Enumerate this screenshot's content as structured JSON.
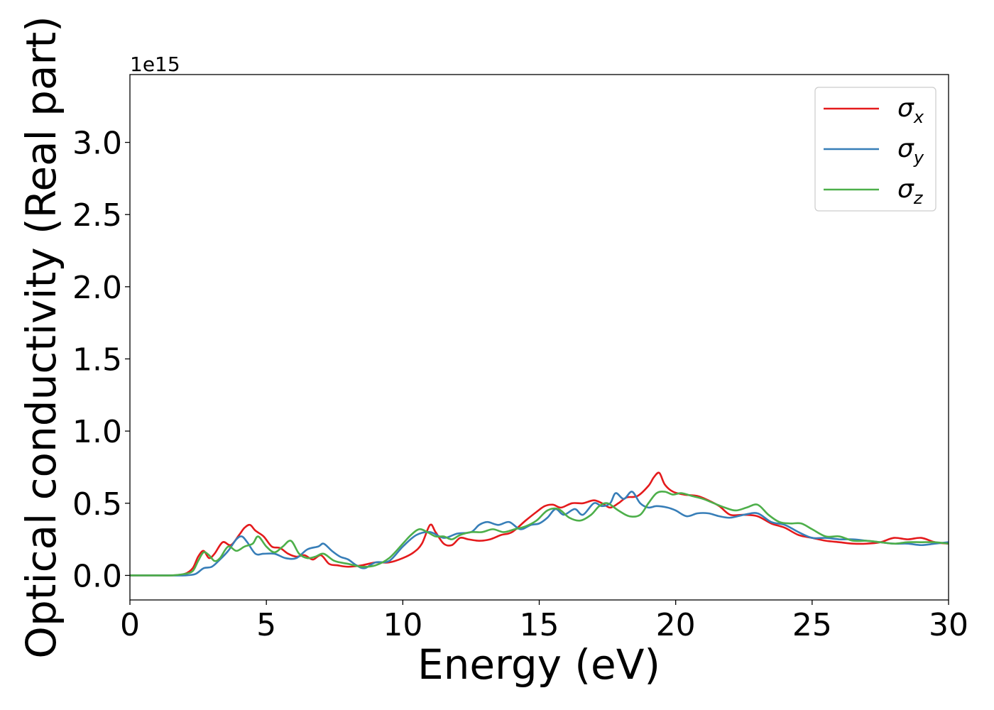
{
  "chart_data": {
    "type": "line",
    "title": "",
    "xlabel": "Energy (eV)",
    "ylabel": "Optical conductivity (Real part)",
    "y_offset_text": "1e15",
    "xlim": [
      0,
      30
    ],
    "ylim": [
      -0.17,
      3.47
    ],
    "x_ticks": [
      0,
      5,
      10,
      15,
      20,
      25,
      30
    ],
    "x_tick_labels": [
      "0",
      "5",
      "10",
      "15",
      "20",
      "25",
      "30"
    ],
    "y_ticks": [
      0.0,
      0.5,
      1.0,
      1.5,
      2.0,
      2.5,
      3.0
    ],
    "y_tick_labels": [
      "0.0",
      "0.5",
      "1.0",
      "1.5",
      "2.0",
      "2.5",
      "3.0"
    ],
    "grid": false,
    "legend_position": "top-right",
    "series": [
      {
        "name": "σx",
        "symbol": "σ",
        "subscript": "x",
        "color": "#e41a1c",
        "x": [
          0,
          1,
          1.5,
          2.0,
          2.3,
          2.5,
          2.7,
          2.9,
          3.1,
          3.4,
          3.7,
          4.0,
          4.2,
          4.4,
          4.6,
          4.9,
          5.2,
          5.5,
          5.8,
          6.1,
          6.4,
          6.7,
          7.0,
          7.3,
          7.6,
          8.0,
          8.5,
          9.0,
          9.5,
          10.0,
          10.4,
          10.7,
          11.0,
          11.2,
          11.5,
          11.8,
          12.1,
          12.4,
          12.8,
          13.2,
          13.6,
          14.0,
          14.5,
          14.9,
          15.2,
          15.5,
          15.8,
          16.2,
          16.6,
          17.0,
          17.3,
          17.6,
          17.9,
          18.2,
          18.6,
          19.0,
          19.2,
          19.4,
          19.6,
          19.9,
          20.3,
          20.8,
          21.2,
          21.6,
          22.0,
          22.5,
          23.0,
          23.5,
          24.0,
          24.5,
          25.0,
          25.5,
          26.0,
          26.5,
          27.0,
          27.5,
          28.0,
          28.5,
          29.0,
          29.5,
          30.0
        ],
        "y": [
          0.0,
          0.0,
          0.0,
          0.01,
          0.05,
          0.13,
          0.17,
          0.12,
          0.15,
          0.23,
          0.21,
          0.28,
          0.33,
          0.35,
          0.31,
          0.27,
          0.2,
          0.19,
          0.15,
          0.13,
          0.14,
          0.11,
          0.14,
          0.08,
          0.07,
          0.06,
          0.07,
          0.09,
          0.09,
          0.12,
          0.16,
          0.22,
          0.35,
          0.3,
          0.22,
          0.21,
          0.26,
          0.25,
          0.24,
          0.25,
          0.28,
          0.3,
          0.38,
          0.44,
          0.48,
          0.49,
          0.47,
          0.5,
          0.5,
          0.52,
          0.5,
          0.47,
          0.5,
          0.54,
          0.55,
          0.62,
          0.68,
          0.71,
          0.63,
          0.58,
          0.56,
          0.55,
          0.52,
          0.48,
          0.42,
          0.42,
          0.41,
          0.36,
          0.33,
          0.28,
          0.26,
          0.24,
          0.23,
          0.22,
          0.22,
          0.23,
          0.26,
          0.25,
          0.26,
          0.23,
          0.22
        ]
      },
      {
        "name": "σy",
        "symbol": "σ",
        "subscript": "y",
        "color": "#377eb8",
        "x": [
          0,
          1,
          1.5,
          2.0,
          2.4,
          2.7,
          3.0,
          3.3,
          3.6,
          3.9,
          4.1,
          4.3,
          4.6,
          4.9,
          5.3,
          5.7,
          6.1,
          6.5,
          6.9,
          7.1,
          7.4,
          7.7,
          8.0,
          8.3,
          8.6,
          9.0,
          9.5,
          10.0,
          10.5,
          11.0,
          11.5,
          12.0,
          12.5,
          12.8,
          13.1,
          13.5,
          13.9,
          14.3,
          14.7,
          15.0,
          15.3,
          15.6,
          15.9,
          16.3,
          16.6,
          17.0,
          17.3,
          17.6,
          17.8,
          18.1,
          18.4,
          18.7,
          19.0,
          19.3,
          19.7,
          20.0,
          20.4,
          20.8,
          21.2,
          21.6,
          22.0,
          22.5,
          23.0,
          23.5,
          24.0,
          24.5,
          25.0,
          25.5,
          26.0,
          26.5,
          27.0,
          27.5,
          28.0,
          28.5,
          29.0,
          29.5,
          30.0
        ],
        "y": [
          0.0,
          0.0,
          0.0,
          0.0,
          0.01,
          0.05,
          0.06,
          0.11,
          0.17,
          0.25,
          0.27,
          0.23,
          0.15,
          0.15,
          0.15,
          0.12,
          0.12,
          0.18,
          0.2,
          0.22,
          0.17,
          0.13,
          0.11,
          0.07,
          0.05,
          0.09,
          0.1,
          0.2,
          0.28,
          0.3,
          0.26,
          0.29,
          0.3,
          0.35,
          0.37,
          0.35,
          0.37,
          0.32,
          0.35,
          0.36,
          0.4,
          0.46,
          0.42,
          0.46,
          0.42,
          0.5,
          0.48,
          0.5,
          0.57,
          0.53,
          0.58,
          0.5,
          0.47,
          0.48,
          0.47,
          0.45,
          0.41,
          0.43,
          0.43,
          0.41,
          0.4,
          0.42,
          0.43,
          0.37,
          0.35,
          0.3,
          0.26,
          0.26,
          0.25,
          0.25,
          0.24,
          0.23,
          0.22,
          0.22,
          0.21,
          0.22,
          0.23
        ]
      },
      {
        "name": "σz",
        "symbol": "σ",
        "subscript": "z",
        "color": "#4daf4a",
        "x": [
          0,
          1,
          1.5,
          2.0,
          2.3,
          2.5,
          2.7,
          2.9,
          3.1,
          3.3,
          3.6,
          3.9,
          4.2,
          4.5,
          4.7,
          5.0,
          5.3,
          5.6,
          5.9,
          6.2,
          6.5,
          6.8,
          7.1,
          7.5,
          8.0,
          8.5,
          9.0,
          9.5,
          10.0,
          10.3,
          10.6,
          10.9,
          11.2,
          11.5,
          11.8,
          12.1,
          12.5,
          12.9,
          13.3,
          13.7,
          14.1,
          14.5,
          14.9,
          15.3,
          15.7,
          16.1,
          16.5,
          16.9,
          17.2,
          17.5,
          17.9,
          18.3,
          18.7,
          19.0,
          19.3,
          19.6,
          19.9,
          20.2,
          20.6,
          21.0,
          21.4,
          21.8,
          22.2,
          22.6,
          23.0,
          23.4,
          23.8,
          24.2,
          24.6,
          25.0,
          25.5,
          26.0,
          26.5,
          27.0,
          27.5,
          28.0,
          28.5,
          29.0,
          29.5,
          30.0
        ],
        "y": [
          0.0,
          0.0,
          0.0,
          0.01,
          0.03,
          0.1,
          0.16,
          0.14,
          0.1,
          0.12,
          0.2,
          0.17,
          0.2,
          0.22,
          0.27,
          0.2,
          0.16,
          0.2,
          0.24,
          0.15,
          0.12,
          0.13,
          0.15,
          0.1,
          0.08,
          0.06,
          0.07,
          0.12,
          0.22,
          0.28,
          0.32,
          0.3,
          0.27,
          0.27,
          0.25,
          0.28,
          0.3,
          0.3,
          0.32,
          0.3,
          0.32,
          0.34,
          0.38,
          0.45,
          0.46,
          0.4,
          0.38,
          0.42,
          0.48,
          0.5,
          0.45,
          0.41,
          0.42,
          0.5,
          0.57,
          0.58,
          0.56,
          0.57,
          0.55,
          0.53,
          0.5,
          0.47,
          0.45,
          0.47,
          0.49,
          0.42,
          0.37,
          0.36,
          0.36,
          0.32,
          0.27,
          0.27,
          0.24,
          0.24,
          0.23,
          0.22,
          0.23,
          0.23,
          0.23,
          0.22
        ]
      }
    ]
  }
}
